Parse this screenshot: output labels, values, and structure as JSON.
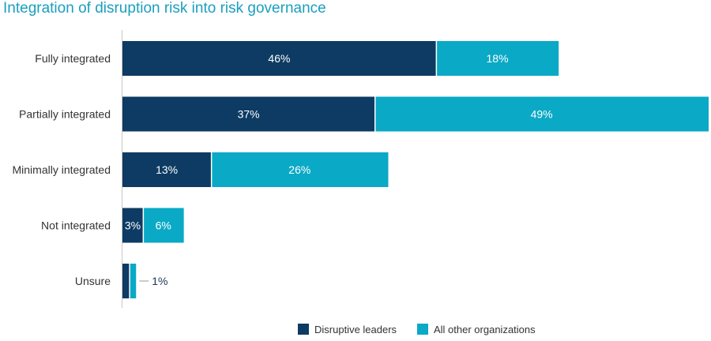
{
  "chart_data": {
    "type": "bar",
    "orientation": "horizontal",
    "stacked": true,
    "title": "Integration of disruption risk into risk governance",
    "categories": [
      "Fully integrated",
      "Partially integrated",
      "Minimally integrated",
      "Not integrated",
      "Unsure"
    ],
    "series": [
      {
        "name": "Disruptive leaders",
        "color": "#0d3b63",
        "values": [
          46,
          37,
          13,
          3,
          1
        ],
        "labels": [
          "46%",
          "37%",
          "13%",
          "3%",
          ""
        ]
      },
      {
        "name": "All other organizations",
        "color": "#0aa9c6",
        "values": [
          18,
          49,
          26,
          6,
          1
        ],
        "labels": [
          "18%",
          "49%",
          "26%",
          "6%",
          "1%"
        ]
      }
    ],
    "xlim": [
      0,
      86
    ],
    "grid": false,
    "legend": "bottom"
  }
}
